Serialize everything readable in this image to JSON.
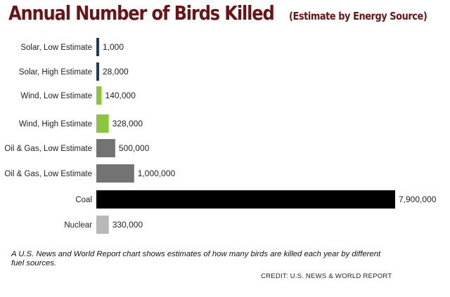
{
  "title": "Annual Number of Birds Killed",
  "subtitle": "(Estimate by Energy Source)",
  "caption": "A U.S. News and World Report chart shows estimates of how many birds are killed each year by different fuel sources.",
  "credit": "CREDIT: U.S. NEWS & WORLD REPORT",
  "colors": {
    "title": "#6b1315",
    "solar": "#1f3a5c",
    "wind": "#8cc63f",
    "oil_gas": "#737373",
    "coal": "#000000",
    "nuclear": "#b8b8b8"
  },
  "chart_data": {
    "type": "bar",
    "orientation": "horizontal",
    "categories": [
      "Solar, Low Estimate",
      "Solar, High Estimate",
      "Wind, Low Estimate",
      "Wind, High Estimate",
      "Oil & Gas, Low Estimate",
      "Oil & Gas, Low Estimate",
      "Coal",
      "Nuclear"
    ],
    "values": [
      1000,
      28000,
      140000,
      328000,
      500000,
      1000000,
      7900000,
      330000
    ],
    "value_labels": [
      "1,000",
      "28,000",
      "140,000",
      "328,000",
      "500,000",
      "1,000,000",
      "7,900,000",
      "330,000"
    ],
    "bar_colors": [
      "#1f3a5c",
      "#1f3a5c",
      "#8cc63f",
      "#8cc63f",
      "#737373",
      "#737373",
      "#000000",
      "#b8b8b8"
    ],
    "xlim": [
      0,
      7900000
    ],
    "grid": false,
    "legend": "none"
  }
}
